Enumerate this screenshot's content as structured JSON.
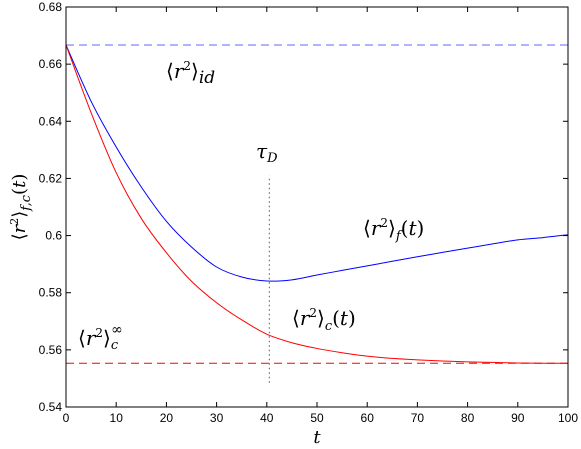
{
  "chart_data": {
    "type": "line",
    "xlabel": "t",
    "ylabel": "⟨r²⟩f,c(t)",
    "xlim": [
      0,
      100
    ],
    "ylim": [
      0.54,
      0.68
    ],
    "x_ticks": [
      "0",
      "10",
      "20",
      "30",
      "40",
      "50",
      "60",
      "70",
      "80",
      "90",
      "100"
    ],
    "y_ticks": [
      "0.54",
      "0.56",
      "0.58",
      "0.6",
      "0.62",
      "0.64",
      "0.66",
      "0.68"
    ],
    "grid": false,
    "legend": "none",
    "series": [
      {
        "name": "⟨r²⟩f(t)",
        "color": "#0000ff",
        "style": "solid",
        "x": [
          0,
          5,
          10,
          15,
          20,
          25,
          30,
          35,
          40,
          45,
          50,
          55,
          60,
          65,
          70,
          75,
          80,
          85,
          90,
          95,
          100
        ],
        "y": [
          0.6667,
          0.647,
          0.631,
          0.617,
          0.605,
          0.596,
          0.589,
          0.5855,
          0.5841,
          0.5845,
          0.5862,
          0.5878,
          0.5894,
          0.591,
          0.5926,
          0.5941,
          0.5956,
          0.5971,
          0.5985,
          0.5993,
          0.6003
        ]
      },
      {
        "name": "⟨r²⟩c(t)",
        "color": "#ff0000",
        "style": "solid",
        "x": [
          0,
          5,
          10,
          15,
          20,
          25,
          30,
          35,
          40,
          45,
          50,
          55,
          60,
          65,
          70,
          75,
          80,
          85,
          90,
          95,
          100
        ],
        "y": [
          0.6667,
          0.643,
          0.622,
          0.606,
          0.594,
          0.584,
          0.5765,
          0.5705,
          0.5655,
          0.5625,
          0.5605,
          0.559,
          0.5578,
          0.557,
          0.5565,
          0.5561,
          0.5558,
          0.5556,
          0.5554,
          0.5553,
          0.5553
        ]
      }
    ],
    "reference_lines": [
      {
        "name": "⟨r²⟩id",
        "orientation": "horizontal",
        "value": 0.6667,
        "color": "#6666ff",
        "style": "dashed"
      },
      {
        "name": "⟨r²⟩c∞",
        "orientation": "horizontal",
        "value": 0.5553,
        "color": "#ff0000",
        "style": "dashed"
      },
      {
        "name": "τD",
        "orientation": "vertical",
        "value": 40.5,
        "range": [
          0.5485,
          0.621
        ],
        "color": "#555555",
        "style": "dotted"
      }
    ],
    "annotations": [
      {
        "label": "⟨r²⟩id",
        "x": 21,
        "y": 0.6575
      },
      {
        "label": "τD",
        "x": 40.5,
        "y": 0.6265
      },
      {
        "label": "⟨r²⟩f(t)",
        "x": 73,
        "y": 0.6025
      },
      {
        "label": "⟨r²⟩c(t)",
        "x": 54,
        "y": 0.5735
      },
      {
        "label": "⟨r²⟩c∞",
        "x": 5,
        "y": 0.5595
      }
    ]
  }
}
